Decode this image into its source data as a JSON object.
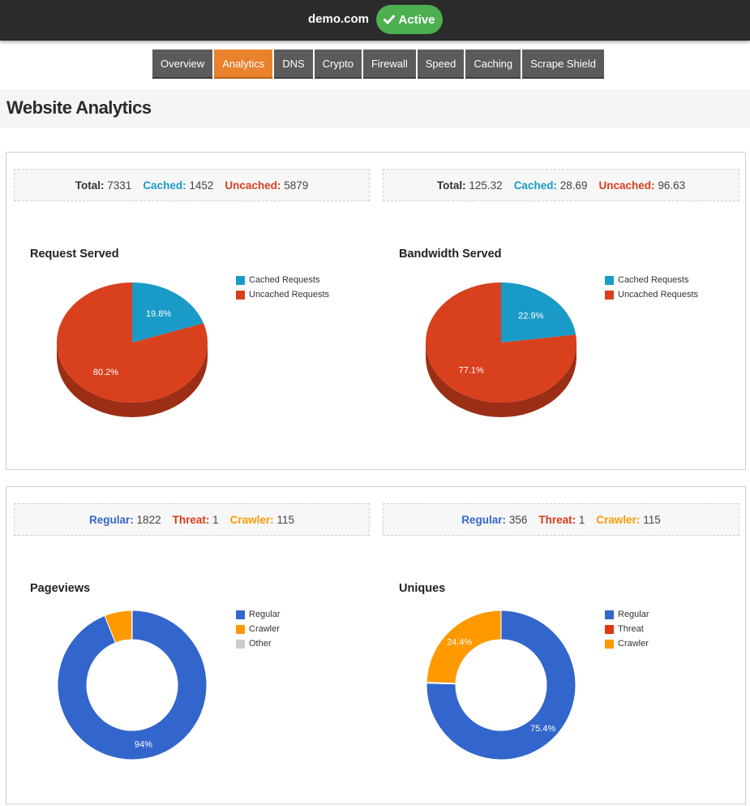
{
  "header": {
    "domain": "demo.com",
    "status_label": "Active",
    "status_color": "#4caf50"
  },
  "tabs": [
    {
      "label": "Overview",
      "active": false
    },
    {
      "label": "Analytics",
      "active": true
    },
    {
      "label": "DNS",
      "active": false
    },
    {
      "label": "Crypto",
      "active": false
    },
    {
      "label": "Firewall",
      "active": false
    },
    {
      "label": "Speed",
      "active": false
    },
    {
      "label": "Caching",
      "active": false
    },
    {
      "label": "Scrape Shield",
      "active": false
    }
  ],
  "page_title": "Website Analytics",
  "colors": {
    "cached": "#1a9bc7",
    "uncached": "#d9401e",
    "regular": "#3366cc",
    "threat": "#dc3912",
    "crawler": "#ff9900",
    "other": "#cccccc"
  },
  "stats": {
    "requests": {
      "total_label": "Total:",
      "total_value": "7331",
      "cached_label": "Cached:",
      "cached_value": "1452",
      "uncached_label": "Uncached:",
      "uncached_value": "5879"
    },
    "bandwidth": {
      "total_label": "Total:",
      "total_value": "125.32",
      "cached_label": "Cached:",
      "cached_value": "28.69",
      "uncached_label": "Uncached:",
      "uncached_value": "96.63"
    },
    "pageviews": {
      "regular_label": "Regular:",
      "regular_value": "1822",
      "threat_label": "Threat:",
      "threat_value": "1",
      "crawler_label": "Crawler:",
      "crawler_value": "115"
    },
    "uniques": {
      "regular_label": "Regular:",
      "regular_value": "356",
      "threat_label": "Threat:",
      "threat_value": "1",
      "crawler_label": "Crawler:",
      "crawler_value": "115"
    }
  },
  "chart_data": [
    {
      "type": "pie",
      "title": "Request Served",
      "style": "3d",
      "series": [
        {
          "name": "Cached Requests",
          "value": 19.8,
          "label": "19.8%",
          "color": "#1a9bc7"
        },
        {
          "name": "Uncached Requests",
          "value": 80.2,
          "label": "80.2%",
          "color": "#d9401e"
        }
      ]
    },
    {
      "type": "pie",
      "title": "Bandwidth Served",
      "style": "3d",
      "series": [
        {
          "name": "Cached Requests",
          "value": 22.9,
          "label": "22.9%",
          "color": "#1a9bc7"
        },
        {
          "name": "Uncached Requests",
          "value": 77.1,
          "label": "77.1%",
          "color": "#d9401e"
        }
      ]
    },
    {
      "type": "pie",
      "title": "Pageviews",
      "style": "donut",
      "series": [
        {
          "name": "Regular",
          "value": 94.0,
          "label": "94%",
          "color": "#3366cc"
        },
        {
          "name": "Crawler",
          "value": 5.9,
          "label": "",
          "color": "#ff9900"
        },
        {
          "name": "Other",
          "value": 0.1,
          "label": "",
          "color": "#cccccc"
        }
      ]
    },
    {
      "type": "pie",
      "title": "Uniques",
      "style": "donut",
      "series": [
        {
          "name": "Regular",
          "value": 75.4,
          "label": "75.4%",
          "color": "#3366cc"
        },
        {
          "name": "Threat",
          "value": 0.2,
          "label": "",
          "color": "#dc3912"
        },
        {
          "name": "Crawler",
          "value": 24.4,
          "label": "24.4%",
          "color": "#ff9900"
        }
      ]
    }
  ]
}
